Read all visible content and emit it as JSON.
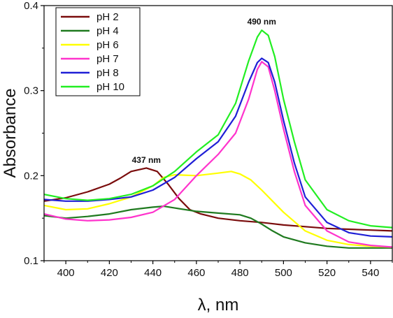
{
  "chart_data": {
    "type": "line",
    "title": "",
    "xlabel": "λ, nm",
    "ylabel": "Absorbance",
    "xlim": [
      390,
      550
    ],
    "ylim": [
      0.1,
      0.4
    ],
    "xticks": [
      400,
      420,
      440,
      460,
      480,
      500,
      520,
      540
    ],
    "yticks": [
      0.1,
      0.2,
      0.3,
      0.4
    ],
    "ytick_labels": [
      "0.1",
      "0.2",
      "0.3",
      "0.4"
    ],
    "grid": false,
    "legend_position": "top-left",
    "annotations": [
      {
        "text": "437 nm",
        "x": 437,
        "y": 0.215
      },
      {
        "text": "490 nm",
        "x": 490,
        "y": 0.378
      }
    ],
    "series": [
      {
        "name": "pH 2",
        "color": "#7a0c0c",
        "points": [
          [
            390,
            0.17
          ],
          [
            400,
            0.174
          ],
          [
            410,
            0.181
          ],
          [
            420,
            0.19
          ],
          [
            425,
            0.197
          ],
          [
            430,
            0.205
          ],
          [
            437,
            0.209
          ],
          [
            442,
            0.205
          ],
          [
            447,
            0.19
          ],
          [
            452,
            0.173
          ],
          [
            457,
            0.16
          ],
          [
            462,
            0.155
          ],
          [
            470,
            0.15
          ],
          [
            480,
            0.147
          ],
          [
            490,
            0.145
          ],
          [
            500,
            0.142
          ],
          [
            510,
            0.14
          ],
          [
            520,
            0.138
          ],
          [
            530,
            0.137
          ],
          [
            540,
            0.136
          ],
          [
            550,
            0.135
          ]
        ]
      },
      {
        "name": "pH 4",
        "color": "#1f7a1f",
        "points": [
          [
            390,
            0.153
          ],
          [
            400,
            0.15
          ],
          [
            410,
            0.152
          ],
          [
            420,
            0.155
          ],
          [
            430,
            0.16
          ],
          [
            440,
            0.163
          ],
          [
            445,
            0.164
          ],
          [
            450,
            0.162
          ],
          [
            460,
            0.158
          ],
          [
            470,
            0.156
          ],
          [
            480,
            0.154
          ],
          [
            485,
            0.15
          ],
          [
            490,
            0.143
          ],
          [
            495,
            0.135
          ],
          [
            500,
            0.128
          ],
          [
            510,
            0.121
          ],
          [
            520,
            0.117
          ],
          [
            530,
            0.115
          ],
          [
            540,
            0.115
          ],
          [
            550,
            0.115
          ]
        ]
      },
      {
        "name": "pH 6",
        "color": "#ffff00",
        "points": [
          [
            390,
            0.165
          ],
          [
            400,
            0.16
          ],
          [
            410,
            0.161
          ],
          [
            420,
            0.167
          ],
          [
            430,
            0.175
          ],
          [
            440,
            0.188
          ],
          [
            445,
            0.198
          ],
          [
            450,
            0.201
          ],
          [
            460,
            0.2
          ],
          [
            470,
            0.203
          ],
          [
            476,
            0.205
          ],
          [
            480,
            0.202
          ],
          [
            485,
            0.195
          ],
          [
            490,
            0.183
          ],
          [
            495,
            0.17
          ],
          [
            500,
            0.157
          ],
          [
            510,
            0.135
          ],
          [
            520,
            0.124
          ],
          [
            530,
            0.119
          ],
          [
            540,
            0.117
          ],
          [
            550,
            0.116
          ]
        ]
      },
      {
        "name": "pH 7",
        "color": "#ff33cc",
        "points": [
          [
            390,
            0.155
          ],
          [
            400,
            0.149
          ],
          [
            410,
            0.147
          ],
          [
            420,
            0.148
          ],
          [
            430,
            0.151
          ],
          [
            440,
            0.157
          ],
          [
            450,
            0.172
          ],
          [
            460,
            0.2
          ],
          [
            470,
            0.225
          ],
          [
            478,
            0.25
          ],
          [
            484,
            0.29
          ],
          [
            488,
            0.325
          ],
          [
            490,
            0.334
          ],
          [
            493,
            0.328
          ],
          [
            496,
            0.3
          ],
          [
            500,
            0.255
          ],
          [
            505,
            0.205
          ],
          [
            510,
            0.165
          ],
          [
            520,
            0.135
          ],
          [
            530,
            0.122
          ],
          [
            540,
            0.118
          ],
          [
            550,
            0.116
          ]
        ]
      },
      {
        "name": "pH 8",
        "color": "#1f1fd6",
        "points": [
          [
            390,
            0.172
          ],
          [
            400,
            0.17
          ],
          [
            410,
            0.17
          ],
          [
            420,
            0.172
          ],
          [
            430,
            0.175
          ],
          [
            440,
            0.183
          ],
          [
            450,
            0.198
          ],
          [
            460,
            0.22
          ],
          [
            470,
            0.24
          ],
          [
            478,
            0.27
          ],
          [
            484,
            0.31
          ],
          [
            488,
            0.333
          ],
          [
            490,
            0.338
          ],
          [
            493,
            0.333
          ],
          [
            496,
            0.31
          ],
          [
            500,
            0.265
          ],
          [
            505,
            0.215
          ],
          [
            510,
            0.175
          ],
          [
            520,
            0.145
          ],
          [
            530,
            0.133
          ],
          [
            540,
            0.129
          ],
          [
            550,
            0.128
          ]
        ]
      },
      {
        "name": "pH 10",
        "color": "#22ee22",
        "points": [
          [
            390,
            0.178
          ],
          [
            400,
            0.173
          ],
          [
            410,
            0.171
          ],
          [
            420,
            0.173
          ],
          [
            430,
            0.178
          ],
          [
            440,
            0.188
          ],
          [
            450,
            0.205
          ],
          [
            460,
            0.228
          ],
          [
            470,
            0.248
          ],
          [
            478,
            0.285
          ],
          [
            484,
            0.335
          ],
          [
            488,
            0.363
          ],
          [
            490,
            0.371
          ],
          [
            493,
            0.365
          ],
          [
            496,
            0.34
          ],
          [
            500,
            0.29
          ],
          [
            505,
            0.24
          ],
          [
            510,
            0.195
          ],
          [
            520,
            0.16
          ],
          [
            530,
            0.147
          ],
          [
            540,
            0.141
          ],
          [
            550,
            0.139
          ]
        ]
      }
    ]
  }
}
